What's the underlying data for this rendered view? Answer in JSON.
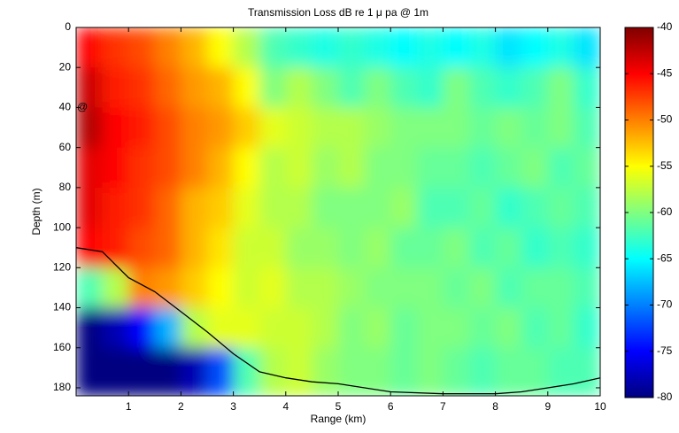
{
  "chart_data": {
    "type": "heatmap",
    "title": "Transmission Loss dB re 1 μ pa @ 1m",
    "xlabel": "Range (km)",
    "ylabel": "Depth (m)",
    "xlim": [
      0,
      10
    ],
    "xticks": [
      1,
      2,
      3,
      4,
      5,
      6,
      7,
      8,
      9,
      10
    ],
    "ylim": [
      0,
      184
    ],
    "yticks": [
      0,
      20,
      40,
      60,
      80,
      100,
      120,
      140,
      160,
      180
    ],
    "y_reversed": true,
    "colormap": "jet",
    "clim": [
      -80,
      -40
    ],
    "cticks": [
      -40,
      -45,
      -50,
      -55,
      -60,
      -65,
      -70,
      -75,
      -80
    ],
    "x_edges": [
      0,
      0.5,
      1,
      1.5,
      2,
      2.5,
      3,
      3.5,
      4,
      4.5,
      5,
      5.5,
      6,
      6.5,
      7,
      7.5,
      8,
      8.5,
      9,
      9.5,
      10
    ],
    "y_edges": [
      0,
      20,
      40,
      60,
      80,
      100,
      120,
      140,
      160,
      184
    ],
    "z": [
      [
        -45,
        -47,
        -48,
        -50,
        -52,
        -55,
        -58,
        -62,
        -63,
        -64,
        -63,
        -64,
        -65,
        -64,
        -65,
        -64,
        -66,
        -65,
        -64,
        -66
      ],
      [
        -43,
        -46,
        -47,
        -49,
        -51,
        -52,
        -55,
        -60,
        -58,
        -60,
        -62,
        -60,
        -62,
        -63,
        -60,
        -62,
        -63,
        -62,
        -60,
        -63
      ],
      [
        -42,
        -45,
        -46,
        -48,
        -50,
        -51,
        -53,
        -56,
        -57,
        -58,
        -58,
        -59,
        -60,
        -60,
        -60,
        -61,
        -60,
        -61,
        -60,
        -62
      ],
      [
        -44,
        -45,
        -47,
        -48,
        -50,
        -52,
        -55,
        -58,
        -57,
        -59,
        -58,
        -60,
        -60,
        -61,
        -61,
        -62,
        -61,
        -60,
        -62,
        -61
      ],
      [
        -44,
        -46,
        -47,
        -49,
        -52,
        -53,
        -56,
        -58,
        -58,
        -60,
        -60,
        -60,
        -59,
        -62,
        -62,
        -61,
        -63,
        -62,
        -61,
        -62
      ],
      [
        -45,
        -46,
        -48,
        -49,
        -52,
        -54,
        -57,
        -57,
        -59,
        -59,
        -60,
        -59,
        -61,
        -61,
        -60,
        -62,
        -61,
        -63,
        -62,
        -63
      ],
      [
        -62,
        -58,
        -50,
        -51,
        -53,
        -55,
        -57,
        -56,
        -58,
        -58,
        -59,
        -60,
        -60,
        -60,
        -61,
        -60,
        -62,
        -61,
        -61,
        -62
      ],
      [
        -80,
        -78,
        -75,
        -68,
        -58,
        -56,
        -56,
        -57,
        -57,
        -58,
        -60,
        -59,
        -61,
        -60,
        -60,
        -61,
        -60,
        -62,
        -61,
        -63
      ],
      [
        -80,
        -80,
        -80,
        -80,
        -78,
        -72,
        -62,
        -58,
        -57,
        -59,
        -60,
        -60,
        -61,
        -60,
        -61,
        -62,
        -61,
        -61,
        -62,
        -62
      ]
    ],
    "bathymetry": {
      "color": "#000000",
      "x": [
        0,
        0.5,
        1,
        1.5,
        2,
        2.5,
        3,
        3.5,
        4,
        4.5,
        5,
        6,
        7,
        8,
        8.5,
        9,
        9.5,
        10
      ],
      "y": [
        110,
        112,
        125,
        132,
        142,
        152,
        163,
        172,
        175,
        177,
        178,
        182,
        183,
        183,
        182,
        180,
        178,
        175
      ]
    },
    "source": {
      "label": "@",
      "x": 0,
      "y": 40
    }
  }
}
